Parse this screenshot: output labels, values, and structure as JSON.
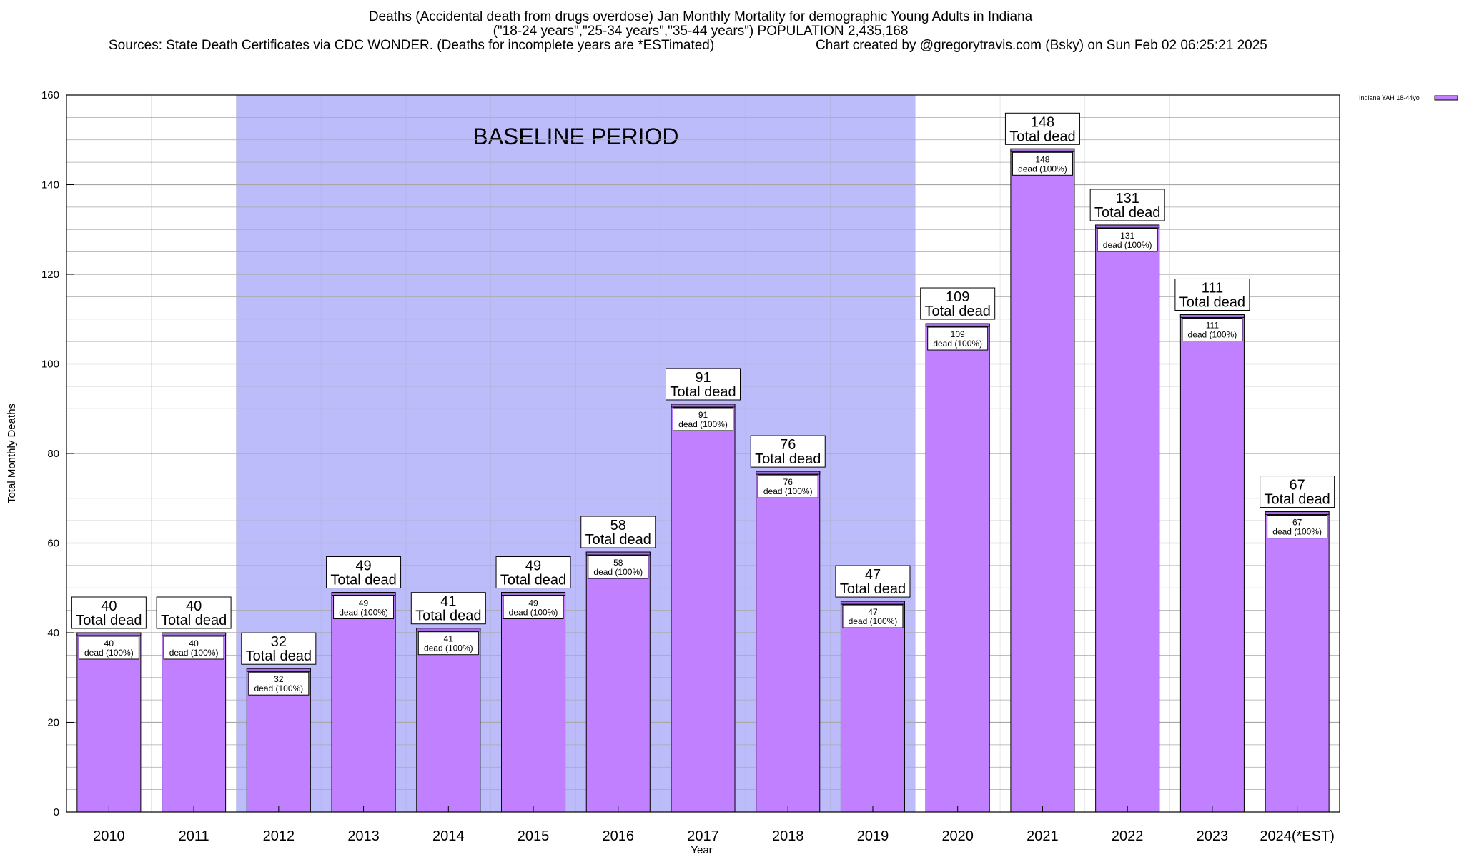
{
  "chart_data": {
    "type": "bar",
    "title_lines": [
      "Deaths (Accidental death from drugs overdose) Jan Monthly Mortality for demographic Young Adults in Indiana",
      "(\"18-24 years\",\"25-34 years\",\"35-44 years\") POPULATION 2,435,168",
      "Sources: State Death Certificates via CDC WONDER. (Deaths for incomplete years are *ESTimated)",
      "Chart created by @gregorytravis.com (Bsky) on Sun Feb 02 06:25:21 2025"
    ],
    "xlabel": "Year",
    "ylabel": "Total Monthly Deaths",
    "ylim": [
      0,
      160
    ],
    "yticks": [
      0,
      20,
      40,
      60,
      80,
      100,
      120,
      140,
      160
    ],
    "grid": true,
    "legend_position": "top-right",
    "categories": [
      "2010",
      "2011",
      "2012",
      "2013",
      "2014",
      "2015",
      "2016",
      "2017",
      "2018",
      "2019",
      "2020",
      "2021",
      "2022",
      "2023",
      "2024(*EST)"
    ],
    "series": [
      {
        "name": "Indiana YAH 18-44yo",
        "color": "#c080ff",
        "values": [
          40,
          40,
          32,
          49,
          41,
          49,
          58,
          91,
          76,
          47,
          109,
          148,
          131,
          111,
          67
        ]
      }
    ],
    "total_label_suffix": "Total dead",
    "inner_label_suffix": "dead (100%)",
    "annotation": {
      "text": "BASELINE PERIOD",
      "range_start": "2012",
      "range_end": "2019",
      "color": "#bcbcfb"
    },
    "colors": {
      "bar_fill": "#c080ff",
      "bar_stroke": "#000000",
      "bar_cap": "#a36ee0",
      "baseline_shade": "#bcbcfb",
      "grid": "#a8a8a8"
    }
  }
}
